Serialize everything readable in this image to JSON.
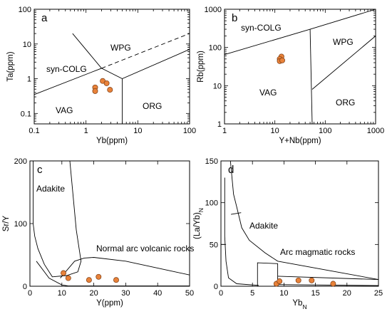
{
  "colors": {
    "point_fill": "#e8823a",
    "point_stroke": "#7a3a10",
    "line": "#000000"
  },
  "chart_data": [
    {
      "panel": "a",
      "type": "scatter",
      "xscale": "log",
      "yscale": "log",
      "xlim": [
        0.1,
        100
      ],
      "ylim": [
        0.05,
        100
      ],
      "xlabel": "Yb(ppm)",
      "ylabel": "Ta(ppm)",
      "xticks": [
        "0.1",
        "1",
        "10",
        "100"
      ],
      "yticks": [
        "0.1",
        "1",
        "10",
        "100"
      ],
      "fields": [
        "WPG",
        "syn-COLG",
        "VAG",
        "ORG"
      ],
      "points": [
        {
          "x": 1.5,
          "y": 0.56
        },
        {
          "x": 1.5,
          "y": 0.44
        },
        {
          "x": 2.1,
          "y": 0.86
        },
        {
          "x": 2.5,
          "y": 0.74
        },
        {
          "x": 2.9,
          "y": 0.48
        }
      ]
    },
    {
      "panel": "b",
      "type": "scatter",
      "xscale": "log",
      "yscale": "log",
      "xlim": [
        1,
        1000
      ],
      "ylim": [
        1,
        1000
      ],
      "xlabel": "Y+Nb(ppm)",
      "ylabel": "Rb(ppm)",
      "xticks": [
        "1",
        "10",
        "100",
        "1000"
      ],
      "yticks": [
        "1",
        "10",
        "100",
        "1000"
      ],
      "fields": [
        "syn-COLG",
        "WPG",
        "VAG",
        "ORG"
      ],
      "points": [
        {
          "x": 13.5,
          "y": 58
        },
        {
          "x": 12.5,
          "y": 50
        },
        {
          "x": 12.5,
          "y": 44
        },
        {
          "x": 14,
          "y": 46
        }
      ]
    },
    {
      "panel": "c",
      "type": "scatter",
      "xlim": [
        0,
        50
      ],
      "ylim": [
        0,
        200
      ],
      "xlabel": "Y(ppm)",
      "ylabel": "Sr/Y",
      "xticks": [
        "0",
        "10",
        "20",
        "30",
        "40",
        "50"
      ],
      "yticks": [
        "0",
        "100",
        "200"
      ],
      "fields": [
        "Adakite",
        "Normal arc volcanic rocks"
      ],
      "points": [
        {
          "x": 10.5,
          "y": 21
        },
        {
          "x": 12,
          "y": 13
        },
        {
          "x": 18.5,
          "y": 10
        },
        {
          "x": 21.5,
          "y": 15
        },
        {
          "x": 27,
          "y": 10
        }
      ]
    },
    {
      "panel": "d",
      "type": "scatter",
      "xlim": [
        0,
        25
      ],
      "ylim": [
        0,
        150
      ],
      "xlabel": "Yb",
      "xlabel_sub": "N",
      "ylabel": "(La/Yb)",
      "ylabel_sub": "N",
      "xticks": [
        "0",
        "5",
        "10",
        "15",
        "20",
        "25"
      ],
      "yticks": [
        "0",
        "50",
        "100",
        "150"
      ],
      "fields": [
        "Adakite",
        "Arc magmatic rocks"
      ],
      "points": [
        {
          "x": 8.8,
          "y": 3
        },
        {
          "x": 9.3,
          "y": 6
        },
        {
          "x": 12.3,
          "y": 7
        },
        {
          "x": 14.4,
          "y": 7
        },
        {
          "x": 17.8,
          "y": 3
        }
      ]
    }
  ]
}
